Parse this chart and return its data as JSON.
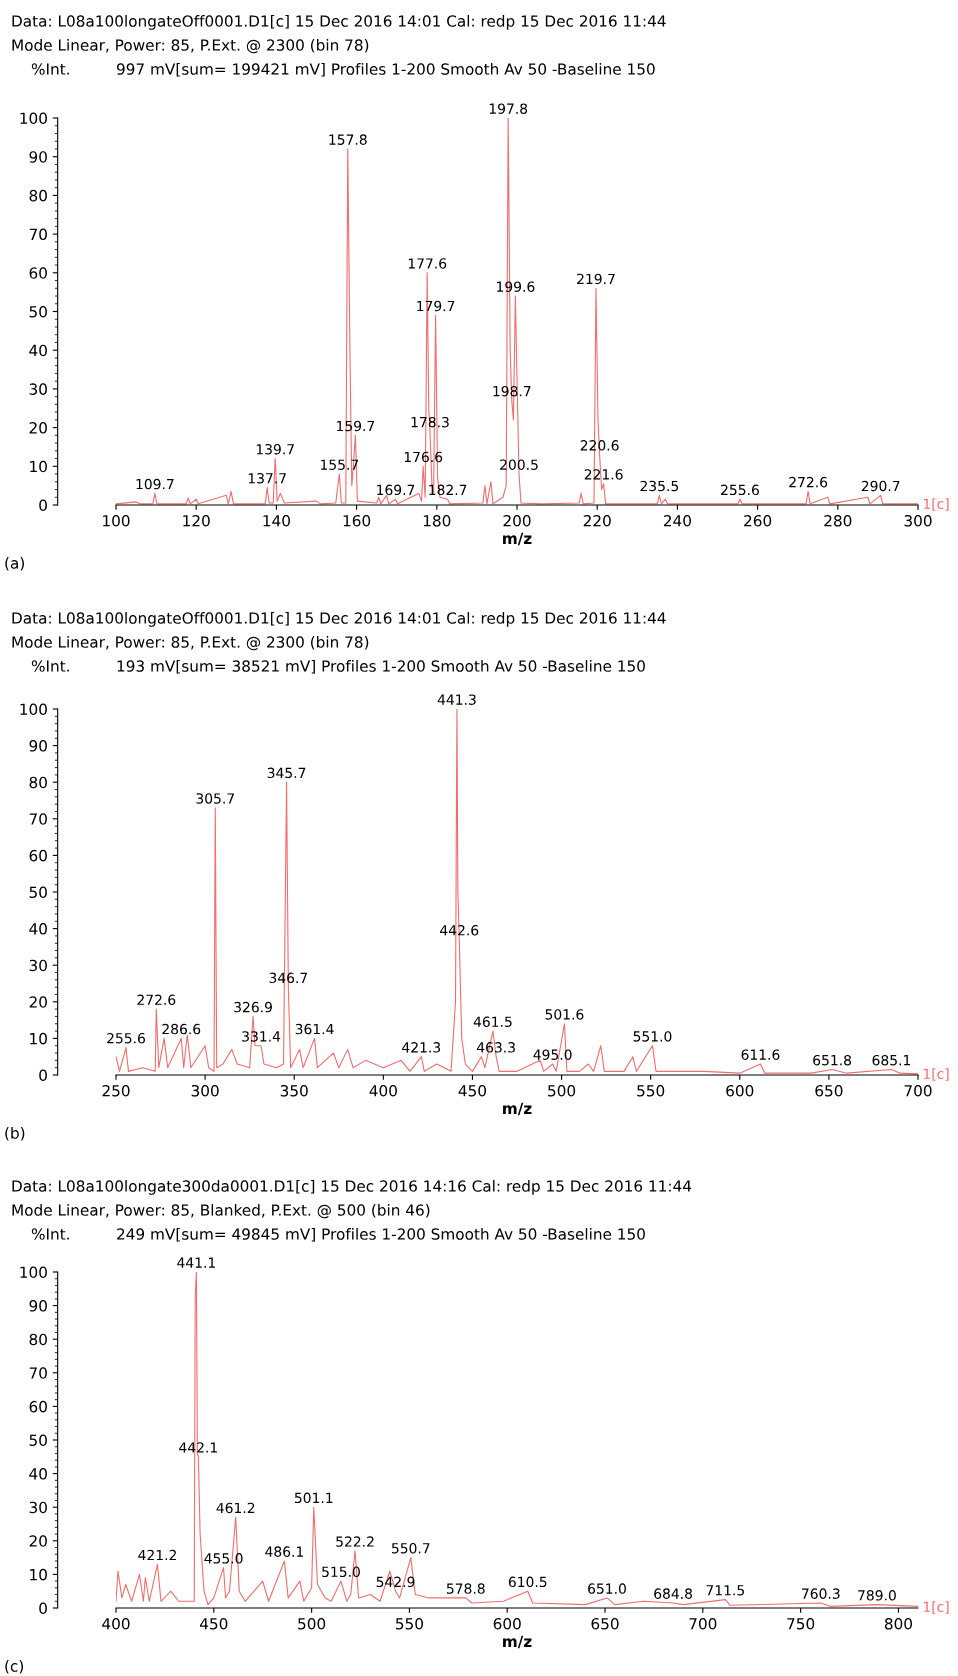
{
  "chart_data": [
    {
      "type": "line",
      "title": "Data: L08a100longateOff0001.D1[c] 15 Dec 2016 14:01 Cal: redp 15 Dec 2016 11:44",
      "subtitle": "Mode Linear, Power: 85, P.Ext. @ 2300 (bin 78)",
      "ylabel": "%Int.",
      "xlabel": "m/z",
      "xlim": [
        100,
        300
      ],
      "xticks": [
        100,
        120,
        140,
        160,
        180,
        200,
        220,
        240,
        260,
        280,
        300
      ],
      "ylim": [
        0,
        100
      ],
      "yticks": [
        0,
        10,
        20,
        30,
        40,
        50,
        60,
        70,
        80,
        90,
        100
      ],
      "grid": false,
      "legend": false,
      "series": [
        {
          "color": "#f06e6e",
          "x": [
            100,
            105,
            106,
            109.2,
            109.7,
            110.2,
            117.5,
            118,
            118.5,
            120,
            120.5,
            127.5,
            128,
            128.7,
            129.3,
            135,
            137.2,
            137.7,
            138.2,
            139.2,
            139.7,
            140.2,
            141,
            142,
            150,
            151,
            154.8,
            155.2,
            155.7,
            156.2,
            157.3,
            157.8,
            158.3,
            158.8,
            159.2,
            159.7,
            160.2,
            165,
            165.5,
            166,
            167.5,
            168,
            169.7,
            170.2,
            175.5,
            176.2,
            176.6,
            177.1,
            177.6,
            178.0,
            178.3,
            178.8,
            179.2,
            179.7,
            180.2,
            180.8,
            182.7,
            183.2,
            191.5,
            192,
            192.5,
            193.5,
            194,
            196.5,
            197.3,
            197.8,
            198.3,
            198.7,
            199.1,
            199.6,
            200.0,
            200.5,
            201,
            206,
            215.5,
            216,
            216.5,
            219.2,
            219.7,
            220.2,
            220.6,
            221.1,
            221.6,
            222.1,
            235,
            235.5,
            236,
            237,
            237.5,
            255.1,
            255.6,
            256.1,
            272.1,
            272.6,
            273.1,
            277.5,
            278,
            287.5,
            288,
            290.7,
            291.2,
            300
          ],
          "values": [
            0.3,
            0.8,
            0.3,
            0.3,
            3,
            0.3,
            0.3,
            1.8,
            0.3,
            1.5,
            0.3,
            2.5,
            0.3,
            3.5,
            0.3,
            0.3,
            0.3,
            4.5,
            0.5,
            0.5,
            12,
            1,
            3,
            0.5,
            1,
            0.3,
            0.5,
            4,
            8,
            0.5,
            0.5,
            92,
            43,
            5,
            10,
            18,
            1,
            0.5,
            2,
            0.3,
            2.5,
            0.3,
            1.5,
            0.3,
            3,
            1,
            10,
            2,
            60,
            25,
            19,
            5,
            3,
            49,
            7,
            2,
            1.5,
            0.3,
            0.5,
            5,
            0.3,
            6,
            0.3,
            2,
            5,
            100,
            40,
            27,
            22,
            54,
            33,
            8,
            0.5,
            0.3,
            0.5,
            3,
            0.3,
            0.5,
            56,
            22,
            13,
            4,
            5.5,
            0.3,
            0.3,
            2.5,
            0.3,
            1.5,
            0.3,
            0.3,
            1.5,
            0.3,
            0.3,
            3.5,
            0.3,
            2,
            0.3,
            2,
            0.3,
            2.5,
            0.3,
            0.3
          ]
        }
      ],
      "annotations": [
        "997 mV[sum= 199421 mV] Profiles 1-200 Smooth Av 50 -Baseline 150",
        "1[c]",
        "(a)",
        {
          "text": "109.7",
          "x": 109.7,
          "y": 3
        },
        {
          "text": "137.7",
          "x": 137.7,
          "y": 4.5
        },
        {
          "text": "139.7",
          "x": 139.7,
          "y": 12
        },
        {
          "text": "155.7",
          "x": 155.7,
          "y": 8
        },
        {
          "text": "157.8",
          "x": 157.8,
          "y": 92
        },
        {
          "text": "159.7",
          "x": 159.7,
          "y": 18
        },
        {
          "text": "169.7",
          "x": 169.7,
          "y": 1.5
        },
        {
          "text": "176.6",
          "x": 176.6,
          "y": 10
        },
        {
          "text": "177.6",
          "x": 177.6,
          "y": 60
        },
        {
          "text": "178.3",
          "x": 178.3,
          "y": 19
        },
        {
          "text": "179.7",
          "x": 179.7,
          "y": 49
        },
        {
          "text": "182.7",
          "x": 182.7,
          "y": 1.5
        },
        {
          "text": "197.8",
          "x": 197.8,
          "y": 100
        },
        {
          "text": "198.7",
          "x": 198.7,
          "y": 27
        },
        {
          "text": "199.6",
          "x": 199.6,
          "y": 54
        },
        {
          "text": "200.5",
          "x": 200.5,
          "y": 8
        },
        {
          "text": "219.7",
          "x": 219.7,
          "y": 56
        },
        {
          "text": "220.6",
          "x": 220.6,
          "y": 13
        },
        {
          "text": "221.6",
          "x": 221.6,
          "y": 5.5
        },
        {
          "text": "235.5",
          "x": 235.5,
          "y": 2.5
        },
        {
          "text": "255.6",
          "x": 255.6,
          "y": 1.5
        },
        {
          "text": "272.6",
          "x": 272.6,
          "y": 3.5
        },
        {
          "text": "290.7",
          "x": 290.7,
          "y": 2.5
        }
      ]
    },
    {
      "type": "line",
      "title": "Data: L08a100longateOff0001.D1[c] 15 Dec 2016 14:01 Cal: redp 15 Dec 2016 11:44",
      "subtitle": "Mode Linear, Power: 85, P.Ext. @ 2300 (bin 78)",
      "ylabel": "%Int.",
      "xlabel": "m/z",
      "xlim": [
        250,
        700
      ],
      "xticks": [
        250,
        300,
        350,
        400,
        450,
        500,
        550,
        600,
        650,
        700
      ],
      "ylim": [
        0,
        100
      ],
      "yticks": [
        0,
        10,
        20,
        30,
        40,
        50,
        60,
        70,
        80,
        90,
        100
      ],
      "grid": false,
      "legend": false,
      "series": [
        {
          "color": "#f06e6e",
          "x": [
            250,
            252,
            255.6,
            257,
            265,
            272,
            272.6,
            274,
            277,
            279,
            286.6,
            288,
            290,
            292,
            300,
            302,
            305,
            305.7,
            306.5,
            310,
            315,
            318,
            325,
            326.9,
            328,
            331.4,
            333,
            340,
            344,
            345.7,
            346.7,
            348,
            353,
            355,
            361.4,
            363,
            372,
            375,
            380,
            383,
            390,
            400,
            410,
            415,
            421.3,
            423,
            430,
            438,
            440.5,
            441.3,
            441.8,
            442.6,
            444,
            446,
            450,
            455,
            457,
            461.5,
            463.3,
            465,
            475,
            488,
            490,
            495,
            497,
            501.6,
            503,
            510,
            515,
            518,
            522,
            524,
            535,
            540,
            542,
            551,
            553,
            580,
            600,
            611.6,
            614,
            640,
            651.8,
            660,
            685.1,
            690,
            700
          ],
          "values": [
            5,
            1,
            7.5,
            1,
            2,
            1,
            18,
            2,
            10,
            2,
            10,
            2,
            11,
            2,
            8,
            2,
            1,
            73,
            2,
            3,
            7,
            3,
            2,
            16,
            8,
            8,
            3,
            2,
            3,
            80,
            24,
            2,
            7,
            2,
            10,
            2,
            6,
            2,
            7,
            2,
            4,
            2,
            4,
            1,
            5,
            1,
            3,
            1,
            20,
            100,
            51,
            37,
            10,
            3,
            1,
            5,
            2,
            12,
            5,
            1,
            1,
            4,
            1,
            3,
            1,
            14,
            1,
            1,
            3,
            1,
            8,
            1,
            1,
            5,
            1,
            8,
            1,
            1,
            0.5,
            3,
            0.5,
            0.5,
            1.5,
            0.5,
            1.5,
            0.5,
            0.3
          ]
        }
      ],
      "annotations": [
        "193 mV[sum= 38521 mV] Profiles 1-200 Smooth Av 50 -Baseline 150",
        "1[c]",
        "(b)",
        {
          "text": "255.6",
          "x": 255.6,
          "y": 7.5
        },
        {
          "text": "272.6",
          "x": 272.6,
          "y": 18
        },
        {
          "text": "286.6",
          "x": 286.6,
          "y": 10
        },
        {
          "text": "305.7",
          "x": 305.7,
          "y": 73
        },
        {
          "text": "326.9",
          "x": 326.9,
          "y": 16
        },
        {
          "text": "331.4",
          "x": 331.4,
          "y": 8
        },
        {
          "text": "345.7",
          "x": 345.7,
          "y": 80
        },
        {
          "text": "346.7",
          "x": 346.7,
          "y": 24
        },
        {
          "text": "361.4",
          "x": 361.4,
          "y": 10
        },
        {
          "text": "421.3",
          "x": 421.3,
          "y": 5
        },
        {
          "text": "441.3",
          "x": 441.3,
          "y": 100
        },
        {
          "text": "442.6",
          "x": 442.6,
          "y": 37
        },
        {
          "text": "461.5",
          "x": 461.5,
          "y": 12
        },
        {
          "text": "463.3",
          "x": 463.3,
          "y": 5
        },
        {
          "text": "495.0",
          "x": 495,
          "y": 3
        },
        {
          "text": "501.6",
          "x": 501.6,
          "y": 14
        },
        {
          "text": "551.0",
          "x": 551,
          "y": 8
        },
        {
          "text": "611.6",
          "x": 611.6,
          "y": 3
        },
        {
          "text": "651.8",
          "x": 651.8,
          "y": 1.5
        },
        {
          "text": "685.1",
          "x": 685.1,
          "y": 1.5
        }
      ]
    },
    {
      "type": "line",
      "title": "Data: L08a100longate300da0001.D1[c] 15 Dec 2016 14:16 Cal: redp 15 Dec 2016 11:44",
      "subtitle": "Mode Linear, Power: 85, Blanked, P.Ext. @ 500 (bin 46)",
      "ylabel": "%Int.",
      "xlabel": "m/z",
      "xlim": [
        400,
        810
      ],
      "xticks": [
        400,
        450,
        500,
        550,
        600,
        650,
        700,
        750,
        800
      ],
      "ylim": [
        0,
        100
      ],
      "yticks": [
        0,
        10,
        20,
        30,
        40,
        50,
        60,
        70,
        80,
        90,
        100
      ],
      "grid": false,
      "legend": false,
      "series": [
        {
          "color": "#f06e6e",
          "x": [
            400,
            401,
            403,
            405,
            408,
            412,
            414,
            415,
            417,
            421.2,
            423,
            428,
            432,
            440,
            440.5,
            441.1,
            441.6,
            442.1,
            443,
            445,
            447,
            450,
            455,
            456,
            458,
            461.2,
            463,
            466,
            475,
            478,
            486.1,
            488,
            494,
            496,
            500,
            501.1,
            503,
            507,
            510,
            515,
            518,
            520,
            522.2,
            524,
            530,
            535,
            540,
            542.9,
            545,
            550.7,
            553,
            560,
            578.8,
            582,
            598,
            610.5,
            613,
            640,
            651,
            655,
            670,
            684.8,
            690,
            711.5,
            714,
            760.3,
            765,
            789,
            810
          ],
          "values": [
            2,
            11,
            3,
            7,
            2,
            10,
            2,
            9,
            2,
            13,
            2,
            5,
            2,
            2,
            93,
            100,
            46,
            45,
            22,
            5,
            1,
            3,
            12,
            3,
            5,
            27,
            5,
            2,
            8,
            2,
            14,
            3,
            8,
            2,
            6,
            30,
            7,
            3,
            2,
            8,
            2,
            4,
            17,
            3,
            4,
            2,
            11,
            5,
            3,
            15,
            4,
            3,
            3,
            1.5,
            2,
            5,
            1.5,
            1,
            3,
            1,
            2,
            1.5,
            1,
            2.5,
            0.8,
            1.5,
            0.5,
            1,
            0.5
          ]
        }
      ],
      "annotations": [
        "249 mV[sum= 49845 mV] Profiles 1-200 Smooth Av 50 -Baseline 150",
        "1[c]",
        "(c)",
        {
          "text": "421.2",
          "x": 421.2,
          "y": 13
        },
        {
          "text": "441.1",
          "x": 441.1,
          "y": 100
        },
        {
          "text": "442.1",
          "x": 442.1,
          "y": 45
        },
        {
          "text": "455.0",
          "x": 455,
          "y": 12
        },
        {
          "text": "461.2",
          "x": 461.2,
          "y": 27
        },
        {
          "text": "486.1",
          "x": 486.1,
          "y": 14
        },
        {
          "text": "501.1",
          "x": 501.1,
          "y": 30
        },
        {
          "text": "515.0",
          "x": 515,
          "y": 8
        },
        {
          "text": "522.2",
          "x": 522.2,
          "y": 17
        },
        {
          "text": "542.9",
          "x": 542.9,
          "y": 5
        },
        {
          "text": "550.7",
          "x": 550.7,
          "y": 15
        },
        {
          "text": "578.8",
          "x": 578.8,
          "y": 3
        },
        {
          "text": "610.5",
          "x": 610.5,
          "y": 5
        },
        {
          "text": "651.0",
          "x": 651,
          "y": 3
        },
        {
          "text": "684.8",
          "x": 684.8,
          "y": 1.5
        },
        {
          "text": "711.5",
          "x": 711.5,
          "y": 2.5
        },
        {
          "text": "760.3",
          "x": 760.3,
          "y": 1.5
        },
        {
          "text": "789.0",
          "x": 789,
          "y": 1
        }
      ]
    }
  ]
}
